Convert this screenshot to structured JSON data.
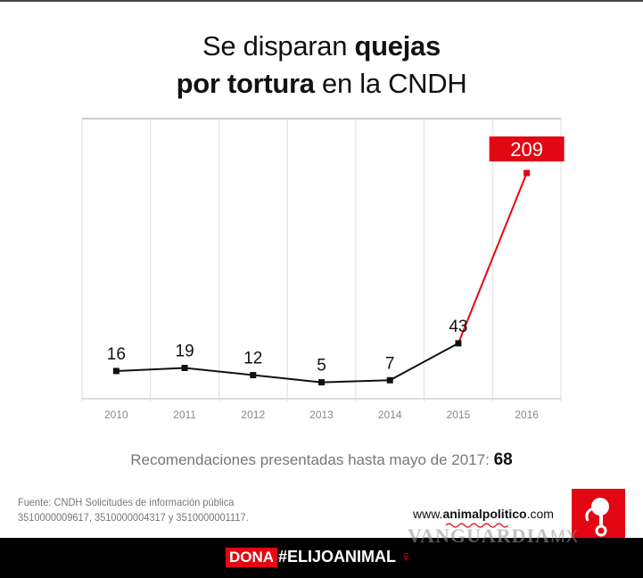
{
  "title": {
    "line1_pre": "Se disparan ",
    "line1_bold": "quejas",
    "line2_bold": "por tortura",
    "line2_post": " en la CNDH"
  },
  "chart_data": {
    "type": "line",
    "categories": [
      "2010",
      "2011",
      "2012",
      "2013",
      "2014",
      "2015",
      "2016"
    ],
    "values": [
      16,
      19,
      12,
      5,
      7,
      43,
      209
    ],
    "data_labels": [
      "16",
      "19",
      "12",
      "5",
      "7",
      "43",
      "209"
    ],
    "highlight": {
      "category": "2016",
      "color": "#e30613"
    },
    "line_color": "#111111",
    "ylim": [
      -11,
      262
    ],
    "grid": "vertical"
  },
  "recommendations": {
    "label": "Recomendaciones presentadas hasta mayo de 2017:",
    "value": "68"
  },
  "source": {
    "line1": "Fuente: CNDH Solicitudes de información pública",
    "line2": "3510000009617, 3510000004317 y 3510000001117."
  },
  "site": {
    "pre": "www.",
    "bold": "animalpolitico",
    "post": ".com"
  },
  "watermark": {
    "text": "VANGUARDIA",
    "suffix": "MX"
  },
  "footer": {
    "dona": "DONA",
    "hashtag": "#ELIJOANIMAL"
  },
  "colors": {
    "accent": "#e30613"
  }
}
